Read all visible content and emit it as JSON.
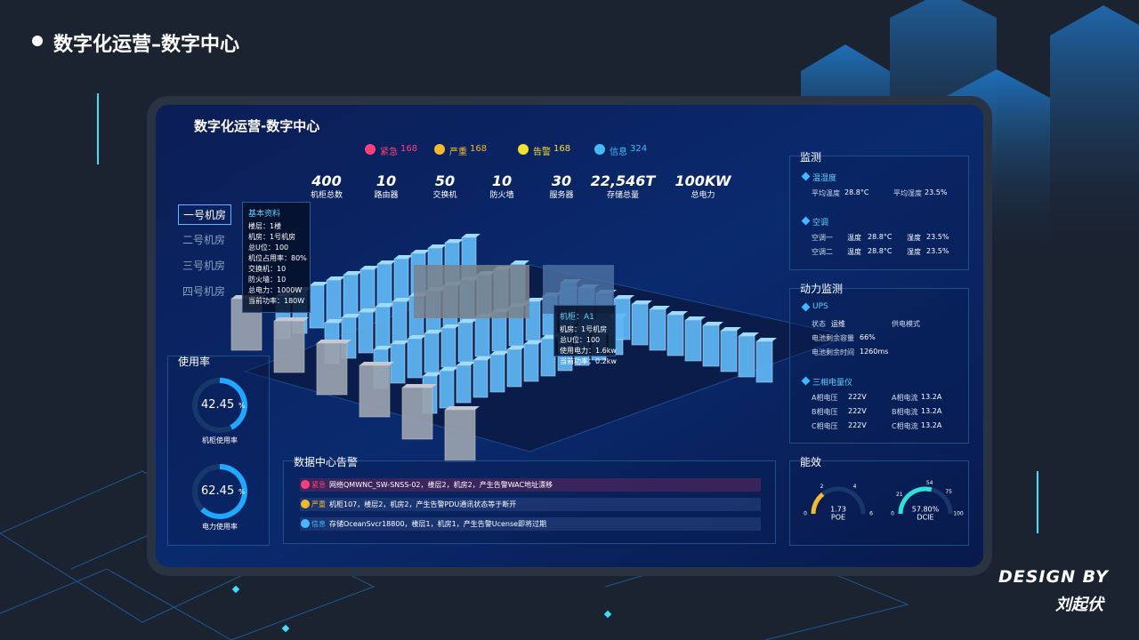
{
  "header": {
    "title": "数字化运营–数字中心"
  },
  "screen": {
    "title": "数字化运营-数字中心",
    "alerts": [
      {
        "label": "紧急",
        "count": 168
      },
      {
        "label": "严重",
        "count": 168
      },
      {
        "label": "告警",
        "count": 168
      },
      {
        "label": "信息",
        "count": 324
      }
    ],
    "stats": [
      {
        "value": "400",
        "label": "机柜总数"
      },
      {
        "value": "10",
        "label": "路由器"
      },
      {
        "value": "50",
        "label": "交换机"
      },
      {
        "value": "10",
        "label": "防火墙"
      },
      {
        "value": "30",
        "label": "服务器"
      },
      {
        "value": "22,546T",
        "label": "存储总量"
      },
      {
        "value": "100KW",
        "label": "总电力"
      }
    ],
    "rooms": [
      "一号机房",
      "二号机房",
      "三号机房",
      "四号机房"
    ],
    "info_card": {
      "title": "基本资料",
      "lines": [
        "楼层：1楼",
        "机房：1号机房",
        "总U位：100",
        "机位占用率：80%",
        "交换机：10",
        "防火墙：10",
        "总电力：1000W",
        "当前功率：180W"
      ]
    },
    "rack_card": {
      "title": "机柜：A1",
      "lines": [
        "机房：1号机房",
        "总U位：100",
        "使用电力：1.6kw",
        "当前功率：0.2kw"
      ]
    },
    "usage": {
      "title": "使用率",
      "items": [
        {
          "value": 42.45,
          "unit": "%",
          "label": "机柜使用率"
        },
        {
          "value": 62.45,
          "unit": "%",
          "label": "电力使用率"
        }
      ]
    },
    "alarm": {
      "title": "数据中心告警",
      "rows": [
        {
          "level": "紧急",
          "text": "网络QMWNC_SW-SNSS-02，楼层2，机房2，产生告警WAC地址漂移"
        },
        {
          "level": "严重",
          "text": "机柜107，楼层2，机房2，产生告警PDU通讯状态等于断开"
        },
        {
          "level": "信息",
          "text": "存储OceanSvcr18800，楼层1，机房1，产生告警Ucense即将过期"
        }
      ]
    },
    "monitor": {
      "title": "监测",
      "temp_humidity": {
        "title": "温湿度",
        "rows": [
          [
            "平均温度",
            "28.8°C",
            "平均湿度",
            "23.5%"
          ]
        ]
      },
      "ac": {
        "title": "空调",
        "rows": [
          [
            "空调一",
            "温度",
            "28.8°C",
            "湿度",
            "23.5%"
          ],
          [
            "空调二",
            "温度",
            "28.8°C",
            "湿度",
            "23.5%"
          ]
        ]
      }
    },
    "power": {
      "title": "动力监测",
      "ups": {
        "title": "UPS",
        "rows": [
          [
            "状态",
            "运维",
            "供电模式"
          ],
          [
            "电池剩余容量",
            "66%"
          ],
          [
            "电池剩余时间",
            "1260ms"
          ]
        ]
      },
      "meter": {
        "title": "三相电量仪",
        "rows": [
          [
            "A相电压",
            "222V",
            "A相电流",
            "13.2A"
          ],
          [
            "B相电压",
            "222V",
            "B相电流",
            "13.2A"
          ],
          [
            "C相电压",
            "222V",
            "C相电流",
            "13.2A"
          ]
        ]
      }
    },
    "efficiency": {
      "title": "能效",
      "gauges": [
        {
          "value": 1.73,
          "name": "POE",
          "ticks": [
            0,
            2,
            4,
            6
          ]
        },
        {
          "value": 57.8,
          "value_label": "57.80%",
          "name": "DCIE",
          "ticks": [
            0,
            21,
            54,
            75,
            100
          ]
        }
      ]
    }
  },
  "credit": {
    "line1": "DESIGN BY",
    "line2": "刘起伏"
  }
}
